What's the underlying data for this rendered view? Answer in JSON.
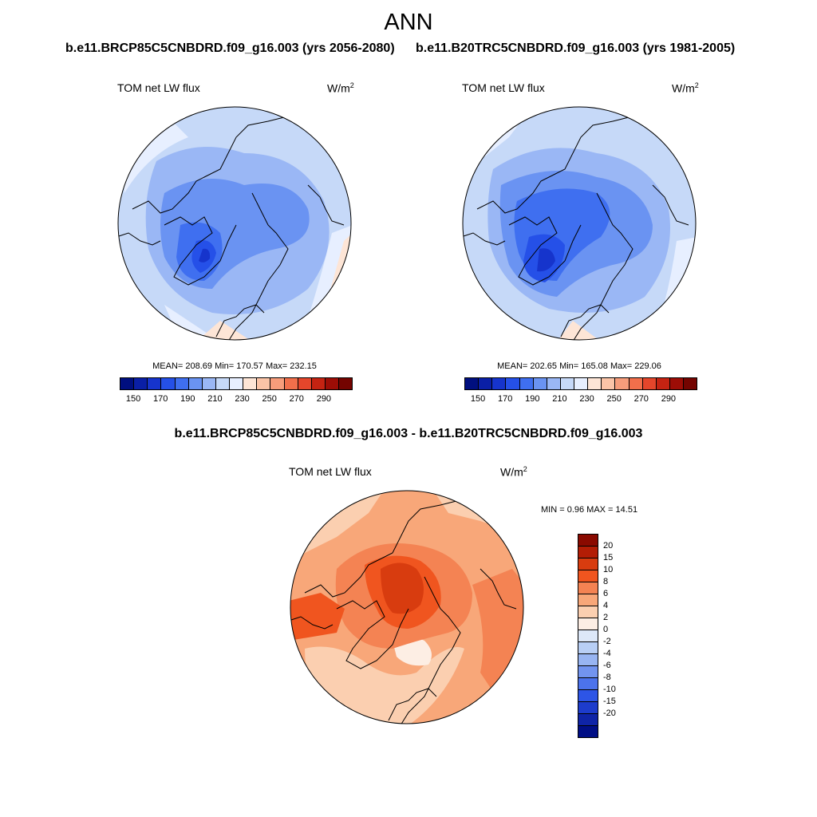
{
  "title": "ANN",
  "panels": [
    {
      "case": "b.e11.BRCP85C5CNBDRD.f09_g16.003 (yrs 2056-2080)",
      "variable": "TOM net LW flux",
      "units": "W/m",
      "units_sup": "2",
      "stats": "MEAN= 208.69  Min= 170.57  Max= 232.15",
      "mean": 208.69,
      "min": 170.57,
      "max": 232.15
    },
    {
      "case": "b.e11.B20TRC5CNBDRD.f09_g16.003 (yrs 1981-2005)",
      "variable": "TOM net LW flux",
      "units": "W/m",
      "units_sup": "2",
      "stats": "MEAN= 202.65  Min= 165.08  Max= 229.06",
      "mean": 202.65,
      "min": 165.08,
      "max": 229.06
    }
  ],
  "colorbar": {
    "colors": [
      "#000f7f",
      "#0a1fa6",
      "#1634cc",
      "#2550e8",
      "#3f6ff0",
      "#6a93f2",
      "#9ab7f5",
      "#c6d9f8",
      "#e7efff",
      "#fde5d6",
      "#fbc4a7",
      "#f79d7b",
      "#f16f4b",
      "#e4462b",
      "#c52312",
      "#9d0d06",
      "#740400"
    ],
    "ticks": [
      "150",
      "170",
      "190",
      "210",
      "230",
      "250",
      "270",
      "290"
    ]
  },
  "diff": {
    "title": "b.e11.BRCP85C5CNBDRD.f09_g16.003 - b.e11.B20TRC5CNBDRD.f09_g16.003",
    "variable": "TOM net LW flux",
    "units": "W/m",
    "units_sup": "2",
    "stats": "MIN =   0.96 MAX =  14.51",
    "min": 0.96,
    "max": 14.51,
    "colorbar": {
      "colors": [
        "#8a0a00",
        "#b31d05",
        "#d83c0f",
        "#f0551f",
        "#f48353",
        "#f8a779",
        "#fbcfb0",
        "#fdeee4",
        "#dde8f8",
        "#b8cff5",
        "#98b5f2",
        "#7294ef",
        "#4c73ec",
        "#2d55e6",
        "#1d3ccc",
        "#0f24a7",
        "#000e85"
      ],
      "labels": [
        "20",
        "15",
        "10",
        "8",
        "6",
        "4",
        "2",
        "0",
        "-2",
        "-4",
        "-6",
        "-8",
        "-10",
        "-15",
        "-20"
      ]
    }
  },
  "chart_data": [
    {
      "type": "heatmap",
      "title": "TOM net LW flux",
      "subtitle": "b.e11.BRCP85C5CNBDRD.f09_g16.003 (yrs 2056-2080)",
      "units": "W/m2",
      "projection": "north polar stereographic",
      "levels": [
        150,
        160,
        170,
        180,
        190,
        200,
        210,
        220,
        230,
        240,
        250,
        260,
        270,
        280,
        290
      ],
      "mean": 208.69,
      "min": 170.57,
      "max": 232.15
    },
    {
      "type": "heatmap",
      "title": "TOM net LW flux",
      "subtitle": "b.e11.B20TRC5CNBDRD.f09_g16.003 (yrs 1981-2005)",
      "units": "W/m2",
      "projection": "north polar stereographic",
      "levels": [
        150,
        160,
        170,
        180,
        190,
        200,
        210,
        220,
        230,
        240,
        250,
        260,
        270,
        280,
        290
      ],
      "mean": 202.65,
      "min": 165.08,
      "max": 229.06
    },
    {
      "type": "heatmap",
      "title": "TOM net LW flux",
      "subtitle": "b.e11.BRCP85C5CNBDRD.f09_g16.003 - b.e11.B20TRC5CNBDRD.f09_g16.003",
      "units": "W/m2",
      "projection": "north polar stereographic",
      "levels": [
        -20,
        -15,
        -10,
        -8,
        -6,
        -4,
        -2,
        0,
        2,
        4,
        6,
        8,
        10,
        15,
        20
      ],
      "min": 0.96,
      "max": 14.51
    }
  ]
}
